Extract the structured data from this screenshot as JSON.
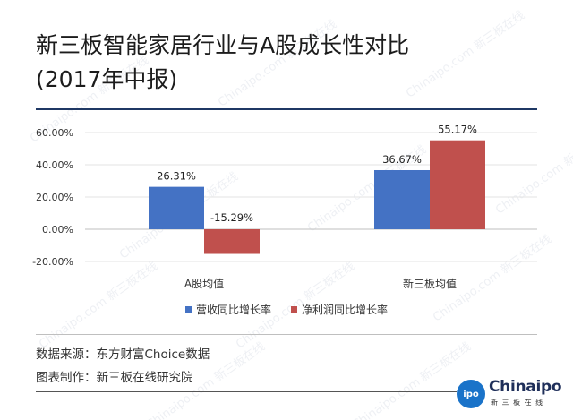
{
  "title": {
    "line1": "新三板智能家居行业与A股成长性对比",
    "line2": "(2017年中报)"
  },
  "chart_data": {
    "type": "bar",
    "categories": [
      "A股均值",
      "新三板均值"
    ],
    "series": [
      {
        "name": "营收同比增长率",
        "values": [
          26.31,
          36.67
        ],
        "labels": [
          "26.31%",
          "36.67%"
        ],
        "color": "#4472c4"
      },
      {
        "name": "净利润同比增长率",
        "values": [
          -15.29,
          55.17
        ],
        "labels": [
          "-15.29%",
          "55.17%"
        ],
        "color": "#c0504d"
      }
    ],
    "yticks": [
      "60.00%",
      "40.00%",
      "20.00%",
      "0.00%",
      "-20.00%"
    ],
    "ylim": [
      -20,
      60
    ],
    "grid": true,
    "legend": "bottom"
  },
  "footer": {
    "source": "数据来源：东方财富Choice数据",
    "maker": "图表制作：新三板在线研究院"
  },
  "logo": {
    "badge": "ipo",
    "word": "Chinaipo",
    "sub": "新 三 板 在 线"
  },
  "watermark": "Chinaipo.com 新三板在线"
}
